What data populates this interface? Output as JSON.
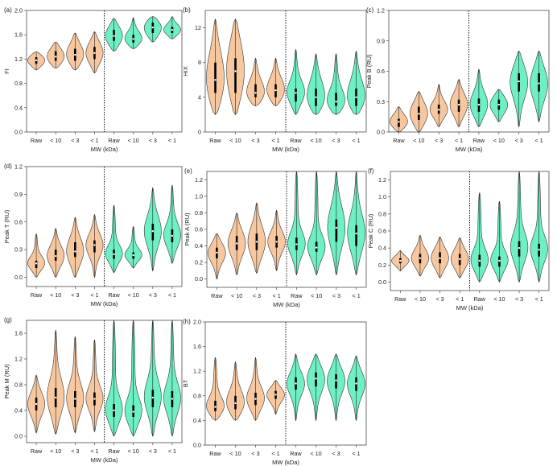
{
  "colors": {
    "raw_fill": "#f7c8a0",
    "fraction_fill": "#6ff0c4",
    "outline": "#333333",
    "median_dot": "#ffffff",
    "iqr_bar": "#000000"
  },
  "shared": {
    "categories": [
      "Raw",
      "< 10",
      "< 3",
      "< 1",
      "Raw",
      "< 10",
      "< 3",
      "< 1"
    ],
    "xlabel": "MW (kDa)"
  },
  "chart_data": [
    {
      "type": "violin",
      "panel": "(a)",
      "ylabel": "FI",
      "ylim": [
        0.0,
        2.0
      ],
      "yticks": [
        "0.0",
        "0.4",
        "0.8",
        "1.2",
        "1.6",
        "2.0"
      ],
      "divider_after": 4,
      "series": [
        {
          "min": 1.02,
          "q1": 1.12,
          "median": 1.18,
          "q3": 1.23,
          "max": 1.32
        },
        {
          "min": 1.05,
          "q1": 1.17,
          "median": 1.24,
          "q3": 1.33,
          "max": 1.48
        },
        {
          "min": 1.02,
          "q1": 1.17,
          "median": 1.27,
          "q3": 1.37,
          "max": 1.63
        },
        {
          "min": 0.97,
          "q1": 1.2,
          "median": 1.3,
          "q3": 1.4,
          "max": 1.65
        },
        {
          "min": 1.33,
          "q1": 1.5,
          "median": 1.58,
          "q3": 1.68,
          "max": 1.87
        },
        {
          "min": 1.37,
          "q1": 1.47,
          "median": 1.53,
          "q3": 1.6,
          "max": 1.88
        },
        {
          "min": 1.48,
          "q1": 1.63,
          "median": 1.72,
          "q3": 1.8,
          "max": 1.9
        },
        {
          "min": 1.53,
          "q1": 1.63,
          "median": 1.68,
          "q3": 1.73,
          "max": 1.9
        }
      ]
    },
    {
      "type": "violin",
      "panel": "(b)",
      "ylabel": "HIX",
      "ylim": [
        0,
        14
      ],
      "yticks": [
        "0",
        "4",
        "8",
        "12"
      ],
      "divider_after": 4,
      "series": [
        {
          "min": 2.0,
          "q1": 4.5,
          "median": 6.0,
          "q3": 8.0,
          "max": 13.0
        },
        {
          "min": 2.0,
          "q1": 4.5,
          "median": 7.0,
          "q3": 8.5,
          "max": 13.0
        },
        {
          "min": 3.0,
          "q1": 4.0,
          "median": 4.5,
          "q3": 5.5,
          "max": 8.5
        },
        {
          "min": 3.0,
          "q1": 4.0,
          "median": 4.8,
          "q3": 5.5,
          "max": 8.5
        },
        {
          "min": 2.0,
          "q1": 3.5,
          "median": 4.5,
          "q3": 5.0,
          "max": 9.5
        },
        {
          "min": 2.0,
          "q1": 3.0,
          "median": 4.0,
          "q3": 5.0,
          "max": 9.0
        },
        {
          "min": 2.0,
          "q1": 3.0,
          "median": 3.5,
          "q3": 4.5,
          "max": 9.0
        },
        {
          "min": 2.0,
          "q1": 3.0,
          "median": 4.0,
          "q3": 5.0,
          "max": 9.3
        }
      ]
    },
    {
      "type": "violin",
      "panel": "(c)",
      "ylabel": "Peak B (RU)",
      "ylim": [
        0.0,
        1.2
      ],
      "yticks": [
        "0.0",
        "0.3",
        "0.6",
        "0.9",
        "1.2"
      ],
      "divider_after": 4,
      "series": [
        {
          "min": 0.0,
          "q1": 0.05,
          "median": 0.1,
          "q3": 0.13,
          "max": 0.25
        },
        {
          "min": 0.0,
          "q1": 0.12,
          "median": 0.18,
          "q3": 0.25,
          "max": 0.4
        },
        {
          "min": 0.05,
          "q1": 0.18,
          "median": 0.22,
          "q3": 0.27,
          "max": 0.47
        },
        {
          "min": 0.05,
          "q1": 0.2,
          "median": 0.27,
          "q3": 0.32,
          "max": 0.52
        },
        {
          "min": 0.05,
          "q1": 0.2,
          "median": 0.27,
          "q3": 0.33,
          "max": 0.62
        },
        {
          "min": 0.1,
          "q1": 0.22,
          "median": 0.27,
          "q3": 0.32,
          "max": 0.42
        },
        {
          "min": 0.05,
          "q1": 0.4,
          "median": 0.5,
          "q3": 0.58,
          "max": 0.8
        },
        {
          "min": 0.1,
          "q1": 0.4,
          "median": 0.48,
          "q3": 0.58,
          "max": 0.8
        }
      ]
    },
    {
      "type": "violin",
      "panel": "(d)",
      "ylabel": "Peak T (RU)",
      "ylim": [
        -0.1,
        1.2
      ],
      "yticks": [
        "0.0",
        "0.3",
        "0.6",
        "0.9",
        "1.2"
      ],
      "divider_after": 4,
      "series": [
        {
          "min": 0.0,
          "q1": 0.1,
          "median": 0.15,
          "q3": 0.18,
          "max": 0.47
        },
        {
          "min": 0.0,
          "q1": 0.18,
          "median": 0.23,
          "q3": 0.3,
          "max": 0.53
        },
        {
          "min": 0.0,
          "q1": 0.22,
          "median": 0.28,
          "q3": 0.38,
          "max": 0.65
        },
        {
          "min": 0.0,
          "q1": 0.27,
          "median": 0.35,
          "q3": 0.4,
          "max": 0.68
        },
        {
          "min": 0.05,
          "q1": 0.2,
          "median": 0.25,
          "q3": 0.3,
          "max": 0.78
        },
        {
          "min": 0.1,
          "q1": 0.2,
          "median": 0.24,
          "q3": 0.27,
          "max": 0.55
        },
        {
          "min": 0.07,
          "q1": 0.4,
          "median": 0.5,
          "q3": 0.58,
          "max": 0.97
        },
        {
          "min": 0.15,
          "q1": 0.38,
          "median": 0.45,
          "q3": 0.52,
          "max": 1.0
        }
      ]
    },
    {
      "type": "violin",
      "panel": "(e)",
      "ylabel": "Peak A (RU)",
      "ylim": [
        -0.1,
        1.3
      ],
      "yticks": [
        "0.0",
        "0.2",
        "0.4",
        "0.6",
        "0.8",
        "1.0",
        "1.2"
      ],
      "divider_after": 4,
      "series": [
        {
          "min": 0.0,
          "q1": 0.25,
          "median": 0.32,
          "q3": 0.38,
          "max": 0.55
        },
        {
          "min": 0.05,
          "q1": 0.35,
          "median": 0.43,
          "q3": 0.52,
          "max": 0.8
        },
        {
          "min": 0.07,
          "q1": 0.35,
          "median": 0.45,
          "q3": 0.55,
          "max": 0.92
        },
        {
          "min": 0.1,
          "q1": 0.38,
          "median": 0.45,
          "q3": 0.52,
          "max": 0.83
        },
        {
          "min": 0.05,
          "q1": 0.35,
          "median": 0.42,
          "q3": 0.5,
          "max": 1.3
        },
        {
          "min": 0.05,
          "q1": 0.33,
          "median": 0.38,
          "q3": 0.45,
          "max": 1.3
        },
        {
          "min": 0.05,
          "q1": 0.45,
          "median": 0.62,
          "q3": 0.72,
          "max": 1.3
        },
        {
          "min": 0.05,
          "q1": 0.4,
          "median": 0.55,
          "q3": 0.65,
          "max": 1.3
        }
      ]
    },
    {
      "type": "violin",
      "panel": "(f)",
      "ylabel": "Peak C (RU)",
      "ylim": [
        -0.1,
        1.3
      ],
      "yticks": [
        "0.0",
        "0.2",
        "0.4",
        "0.6",
        "0.8",
        "1.0",
        "1.2"
      ],
      "divider_after": 4,
      "series": [
        {
          "min": 0.13,
          "q1": 0.22,
          "median": 0.25,
          "q3": 0.28,
          "max": 0.37
        },
        {
          "min": 0.07,
          "q1": 0.22,
          "median": 0.28,
          "q3": 0.33,
          "max": 0.55
        },
        {
          "min": 0.05,
          "q1": 0.22,
          "median": 0.28,
          "q3": 0.35,
          "max": 0.53
        },
        {
          "min": 0.05,
          "q1": 0.2,
          "median": 0.27,
          "q3": 0.33,
          "max": 0.52
        },
        {
          "min": 0.0,
          "q1": 0.18,
          "median": 0.25,
          "q3": 0.32,
          "max": 1.05
        },
        {
          "min": 0.0,
          "q1": 0.18,
          "median": 0.25,
          "q3": 0.3,
          "max": 0.95
        },
        {
          "min": 0.0,
          "q1": 0.3,
          "median": 0.4,
          "q3": 0.48,
          "max": 1.3
        },
        {
          "min": 0.0,
          "q1": 0.3,
          "median": 0.38,
          "q3": 0.45,
          "max": 1.3
        }
      ]
    },
    {
      "type": "violin",
      "panel": "(g)",
      "ylabel": "Peak M (RU)",
      "ylim": [
        -0.1,
        1.8
      ],
      "yticks": [
        "0.0",
        "0.4",
        "0.8",
        "1.2",
        "1.6"
      ],
      "divider_after": 4,
      "series": [
        {
          "min": 0.05,
          "q1": 0.4,
          "median": 0.5,
          "q3": 0.6,
          "max": 0.95
        },
        {
          "min": 0.03,
          "q1": 0.45,
          "median": 0.6,
          "q3": 0.75,
          "max": 1.65
        },
        {
          "min": 0.05,
          "q1": 0.45,
          "median": 0.58,
          "q3": 0.7,
          "max": 1.55
        },
        {
          "min": 0.07,
          "q1": 0.48,
          "median": 0.58,
          "q3": 0.68,
          "max": 1.5
        },
        {
          "min": 0.0,
          "q1": 0.3,
          "median": 0.4,
          "q3": 0.5,
          "max": 1.8
        },
        {
          "min": 0.0,
          "q1": 0.3,
          "median": 0.38,
          "q3": 0.48,
          "max": 1.8
        },
        {
          "min": 0.0,
          "q1": 0.45,
          "median": 0.6,
          "q3": 0.72,
          "max": 1.8
        },
        {
          "min": 0.0,
          "q1": 0.45,
          "median": 0.58,
          "q3": 0.7,
          "max": 1.8
        }
      ]
    },
    {
      "type": "violin",
      "panel": "(h)",
      "ylabel": "BT",
      "ylim": [
        0.0,
        2.0
      ],
      "yticks": [
        "0.0",
        "0.4",
        "0.8",
        "1.2",
        "1.6",
        "2.0"
      ],
      "divider_after": 4,
      "series": [
        {
          "min": 0.4,
          "q1": 0.55,
          "median": 0.62,
          "q3": 0.72,
          "max": 1.42
        },
        {
          "min": 0.4,
          "q1": 0.58,
          "median": 0.68,
          "q3": 0.8,
          "max": 1.35
        },
        {
          "min": 0.4,
          "q1": 0.65,
          "median": 0.75,
          "q3": 0.85,
          "max": 1.42
        },
        {
          "min": 0.5,
          "q1": 0.75,
          "median": 0.82,
          "q3": 0.88,
          "max": 1.05
        },
        {
          "min": 0.4,
          "q1": 0.9,
          "median": 1.0,
          "q3": 1.1,
          "max": 1.48
        },
        {
          "min": 0.4,
          "q1": 0.95,
          "median": 1.08,
          "q3": 1.18,
          "max": 1.48
        },
        {
          "min": 0.4,
          "q1": 0.92,
          "median": 1.05,
          "q3": 1.15,
          "max": 1.48
        },
        {
          "min": 0.4,
          "q1": 0.88,
          "median": 1.0,
          "q3": 1.1,
          "max": 1.45
        }
      ]
    }
  ]
}
